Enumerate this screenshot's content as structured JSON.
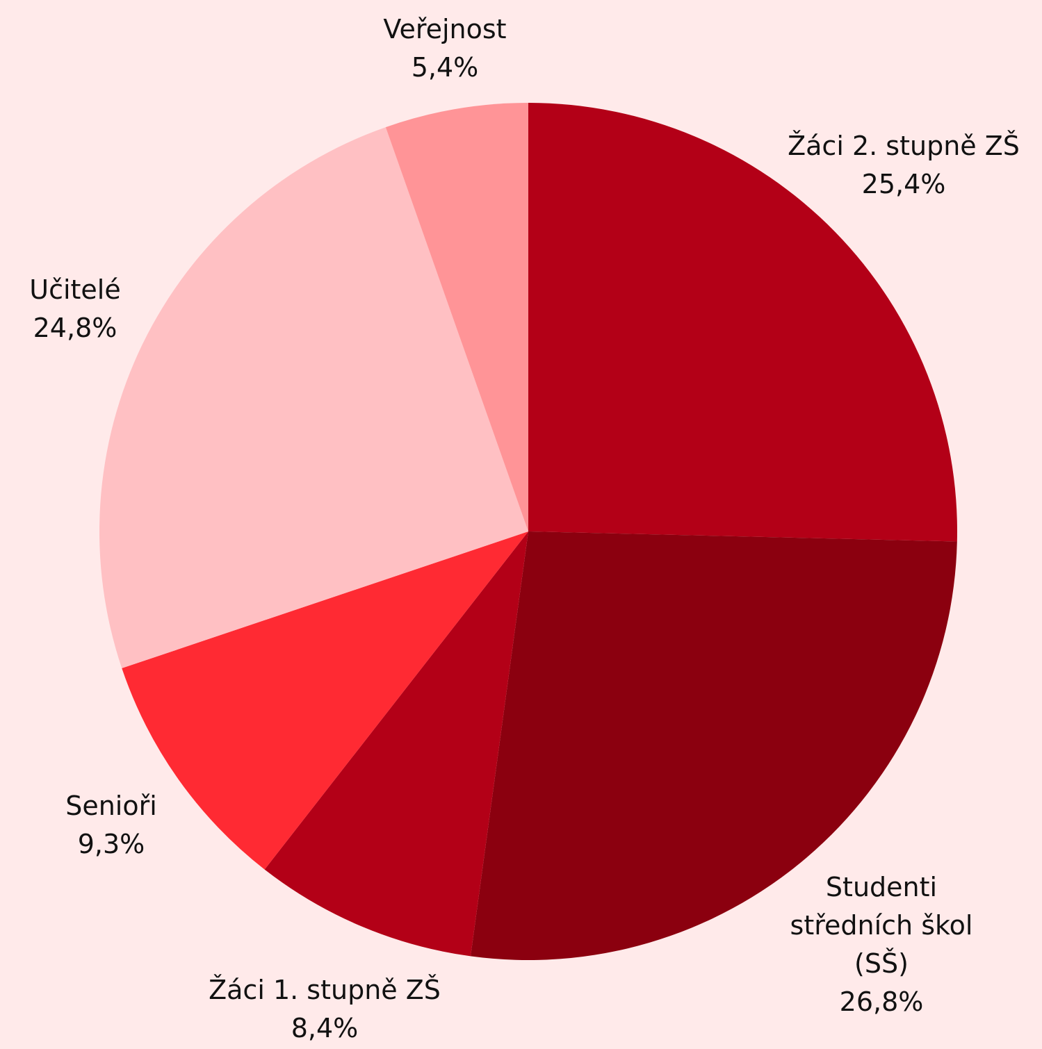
{
  "chart_data": {
    "type": "pie",
    "categories": [
      "Žáci 2. stupně ZŠ",
      "Studenti středních škol (SŠ)",
      "Žáci 1. stupně ZŠ",
      "Senioři",
      "Učitelé",
      "Veřejnost"
    ],
    "values": [
      25.4,
      26.8,
      8.4,
      9.3,
      24.8,
      5.4
    ],
    "value_labels": [
      "25,4%",
      "26,8%",
      "8,4%",
      "9,3%",
      "24,8%",
      "5,4%"
    ],
    "colors": [
      "#b30017",
      "#8b000f",
      "#b30017",
      "#ff2a33",
      "#ffc0c3",
      "#ff9497"
    ]
  }
}
